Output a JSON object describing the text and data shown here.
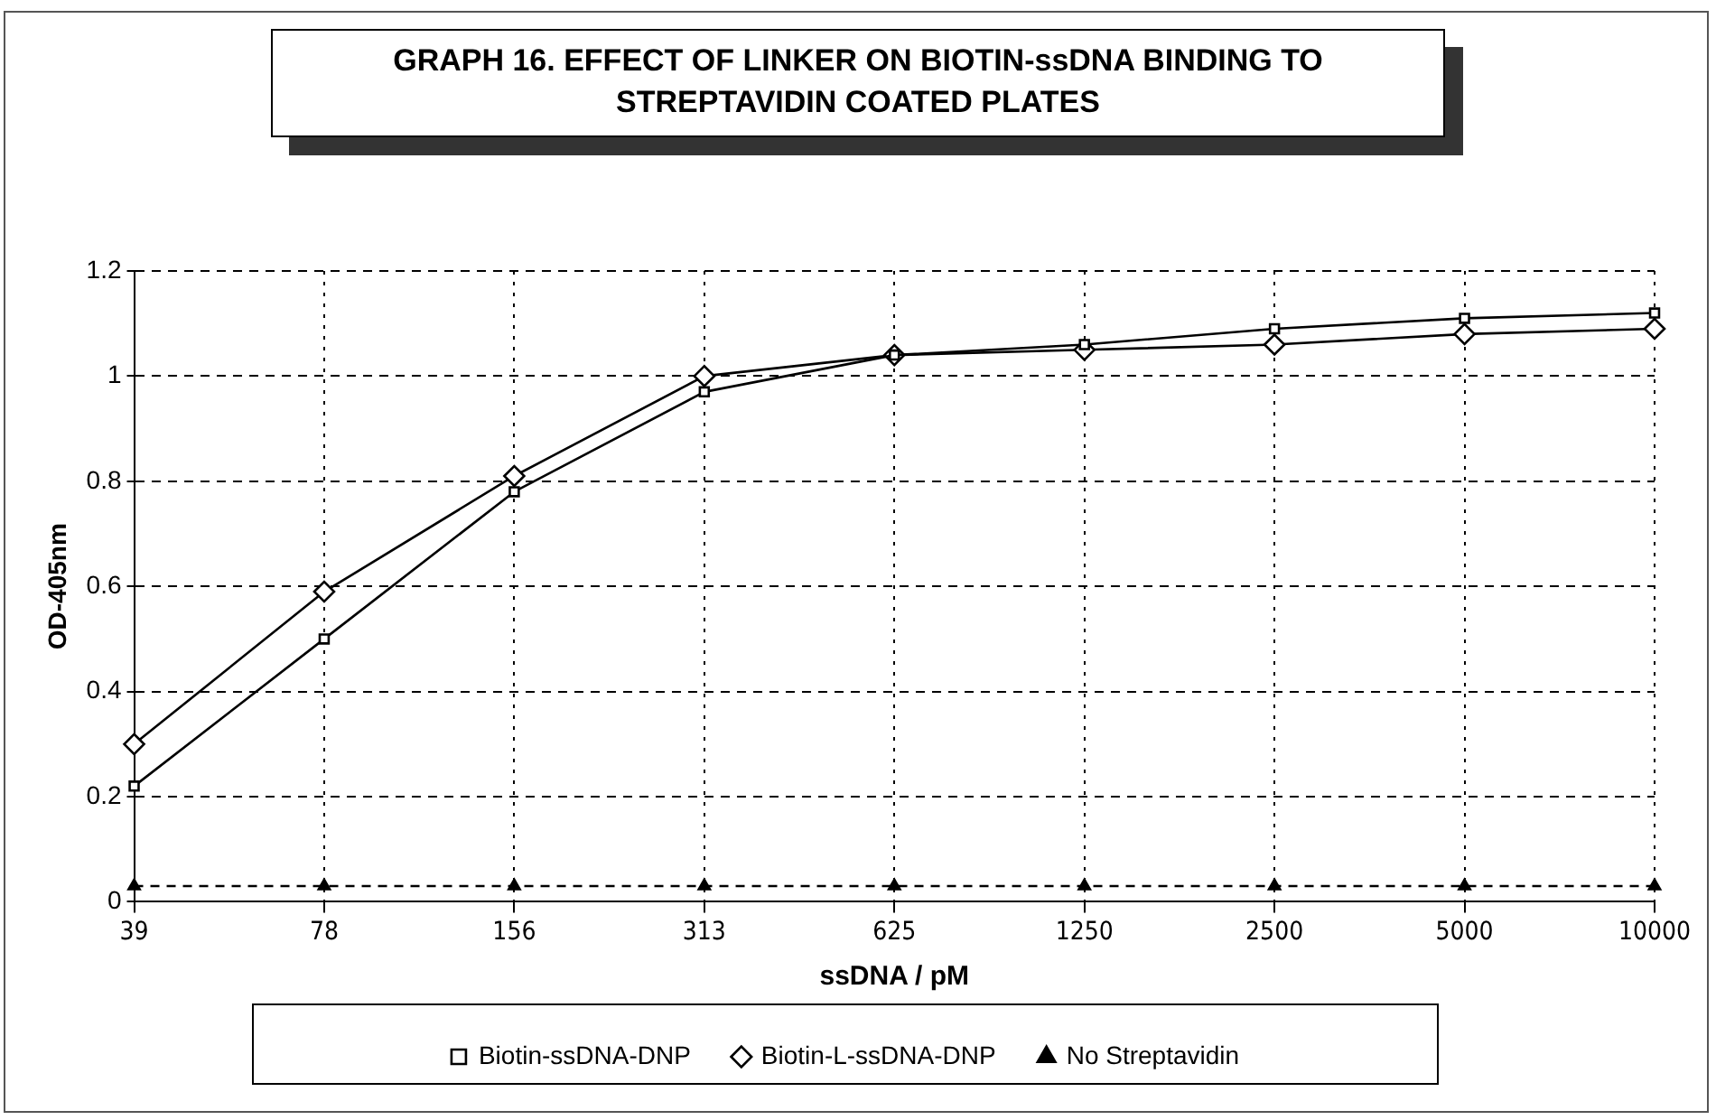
{
  "chart_data": {
    "type": "line",
    "title": "GRAPH 16. EFFECT OF LINKER ON BIOTIN-ssDNA BINDING TO STREPTAVIDIN COATED PLATES",
    "xlabel": "ssDNA / pM",
    "ylabel": "OD-405nm",
    "categories": [
      "39",
      "78",
      "156",
      "313",
      "625",
      "1250",
      "2500",
      "5000",
      "10000"
    ],
    "series": [
      {
        "name": "Biotin-ssDNA-DNP",
        "color": "#000000",
        "marker": "square",
        "line_style": "solid",
        "values": [
          0.22,
          0.5,
          0.78,
          0.97,
          1.04,
          1.06,
          1.09,
          1.11,
          1.12
        ]
      },
      {
        "name": "Biotin-L-ssDNA-DNP",
        "color": "#000000",
        "marker": "diamond",
        "line_style": "solid",
        "values": [
          0.3,
          0.59,
          0.81,
          1.0,
          1.04,
          1.05,
          1.06,
          1.08,
          1.09
        ]
      },
      {
        "name": "No Streptavidin",
        "color": "#000000",
        "marker": "triangle",
        "line_style": "dashed",
        "values": [
          0.03,
          0.03,
          0.03,
          0.03,
          0.03,
          0.03,
          0.03,
          0.03,
          0.03
        ]
      }
    ],
    "ylim": [
      0,
      1.2
    ],
    "yticks": [
      0,
      0.2,
      0.4,
      0.6,
      0.8,
      1,
      1.2
    ],
    "grid": true,
    "legend": "bottom"
  }
}
